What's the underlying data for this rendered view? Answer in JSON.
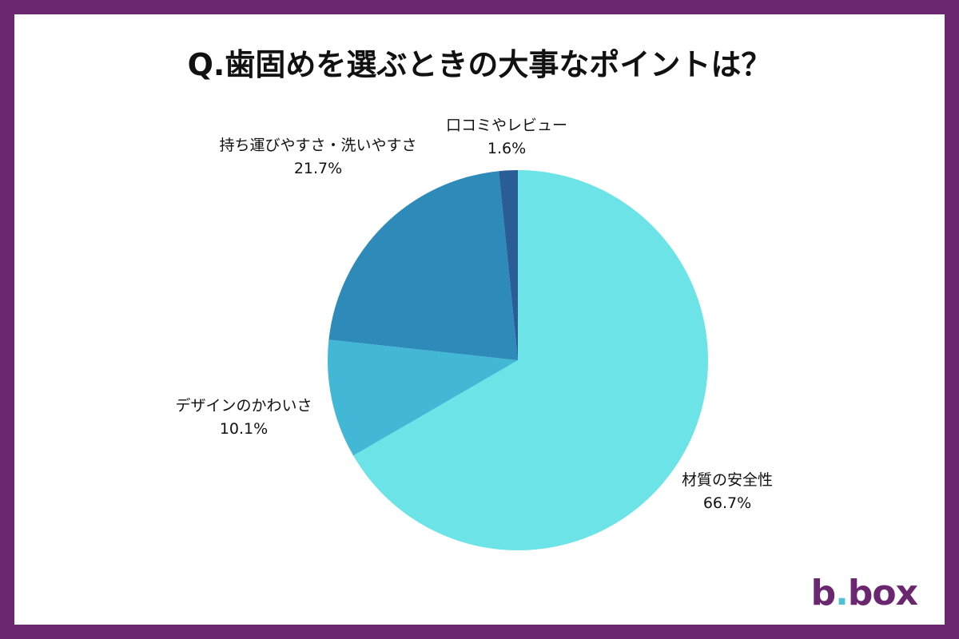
{
  "chart_data": {
    "type": "pie",
    "title": "Q.歯固めを選ぶときの大事なポイントは？",
    "unit": "%",
    "slices": [
      {
        "label": "材質の安全性",
        "value": 66.7,
        "value_label": "66.7%",
        "color": "#6ce3e6",
        "label_side": "right"
      },
      {
        "label": "デザインのかわいさ",
        "value": 10.1,
        "value_label": "10.1%",
        "color": "#42b8d6",
        "label_side": "left"
      },
      {
        "label": "持ち運びやすさ・洗いやすさ",
        "value": 21.7,
        "value_label": "21.7%",
        "color": "#2e8ab8",
        "label_side": "left"
      },
      {
        "label": "口コミやレビュー",
        "value": 1.6,
        "value_label": "1.6%",
        "color": "#2a5d96",
        "label_side": "top"
      }
    ],
    "start_angle": "top",
    "direction": "clockwise"
  },
  "branding": {
    "logo_text": "b.box",
    "logo_parts": [
      "b",
      ".",
      "box"
    ]
  },
  "colors": {
    "frame": "#6b2670",
    "logo": "#6b2670",
    "logo_dot": "#4fc3d6"
  }
}
